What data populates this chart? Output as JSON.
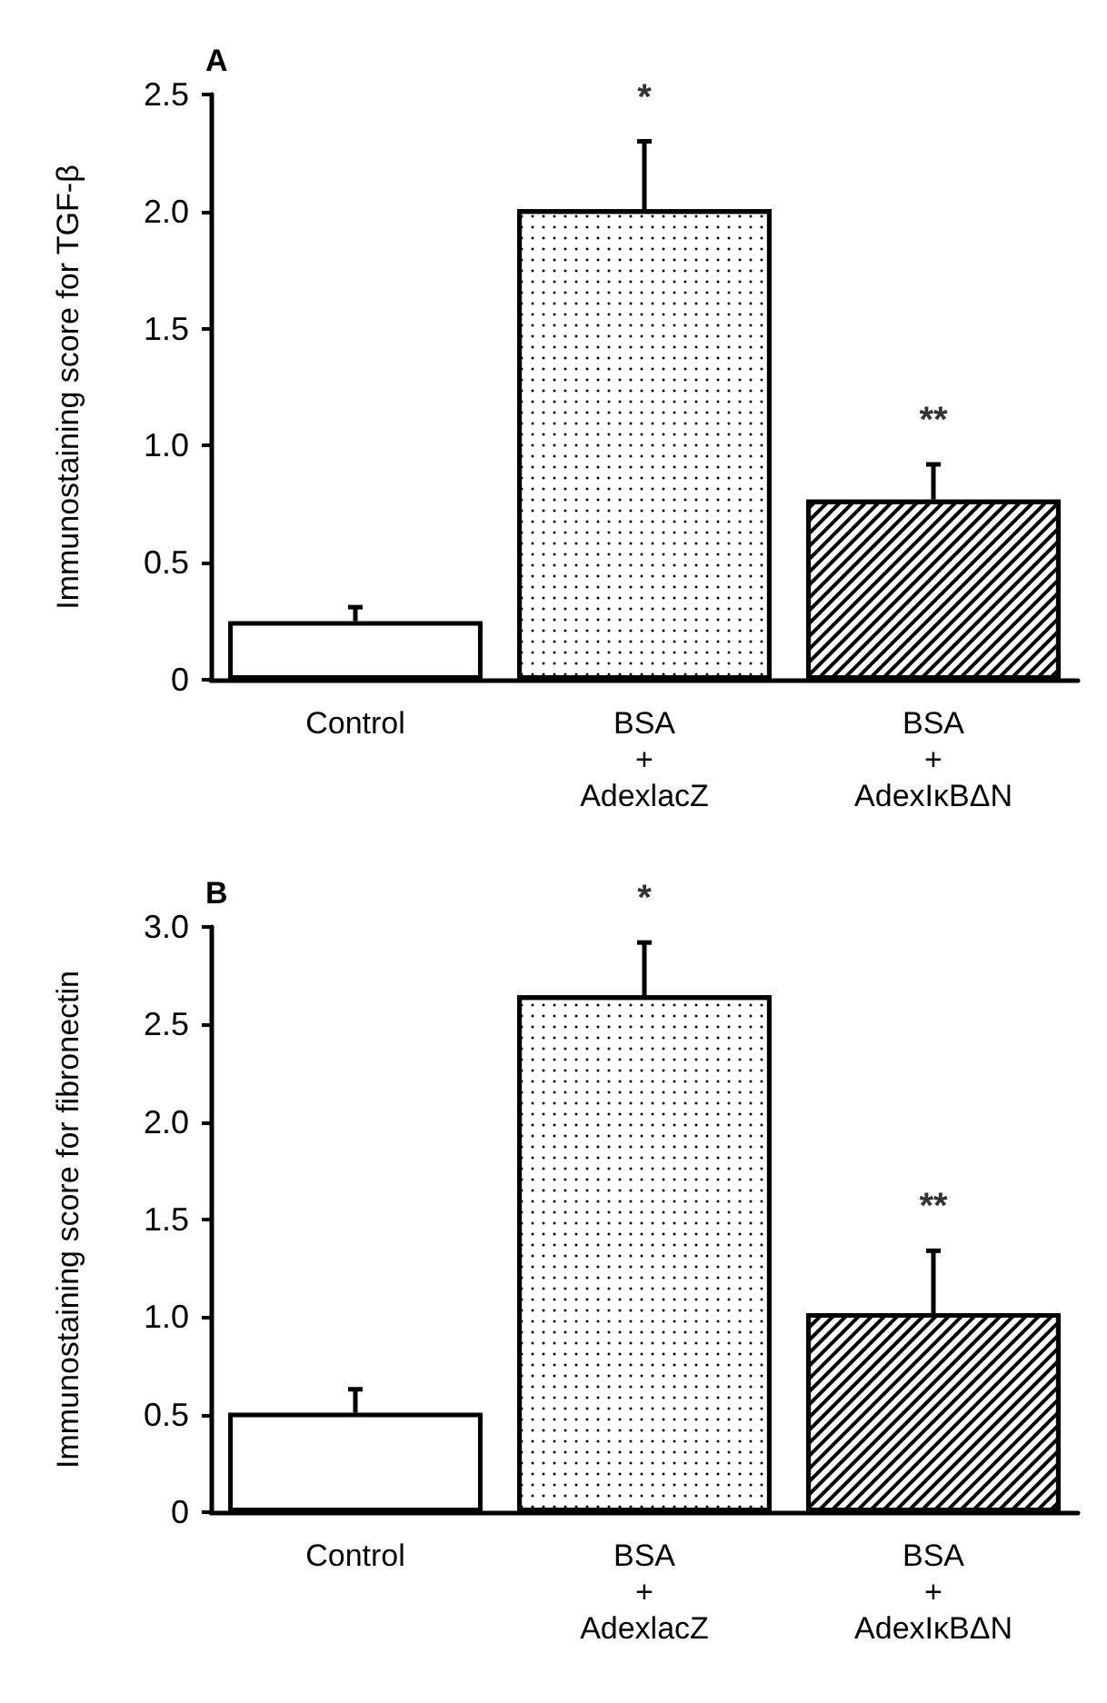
{
  "chart_data": [
    {
      "type": "bar",
      "title": "A",
      "ylabel": "Immunostaining score for TGF-β",
      "categories": [
        "Control",
        "BSA\n+\nAdexlacZ",
        "BSA\n+\nAdexIκBΔN"
      ],
      "values": [
        0.25,
        2.01,
        0.77
      ],
      "colors": [
        "#ffffff",
        "#ffffff",
        "#ffffff"
      ],
      "errors": [
        [
          0.25,
          0.31
        ],
        [
          2.01,
          2.3
        ],
        [
          0.77,
          0.92
        ]
      ],
      "ylim": [
        0,
        2.5
      ],
      "yticks": [
        {
          "value": 0,
          "label": "0"
        },
        {
          "value": 0.5,
          "label": "0.5"
        },
        {
          "value": 1,
          "label": "1.0"
        },
        {
          "value": 1.5,
          "label": "1.5"
        },
        {
          "value": 2,
          "label": "2.0"
        },
        {
          "value": 2.5,
          "label": "2.5"
        }
      ],
      "grid": false,
      "annotations": [
        {
          "text": "*",
          "x": "BSA\n+\nAdexlacZ",
          "y": 2.3
        },
        {
          "text": "**",
          "x": "BSA\n+\nAdexIκBΔN",
          "y": 0.92
        }
      ]
    },
    {
      "type": "bar",
      "title": "B",
      "ylabel": "Immunostaining score for fibronectin",
      "categories": [
        "Control",
        "BSA\n+\nAdexlacZ",
        "BSA\n+\nAdexIκBΔN"
      ],
      "values": [
        0.51,
        2.65,
        1.02
      ],
      "colors": [
        "#ffffff",
        "#ffffff",
        "#ffffff"
      ],
      "errors": [
        [
          0.51,
          0.63
        ],
        [
          2.65,
          2.92
        ],
        [
          1.02,
          1.34
        ]
      ],
      "ylim": [
        0,
        3.0
      ],
      "yticks": [
        {
          "value": 0,
          "label": "0"
        },
        {
          "value": 0.5,
          "label": "0.5"
        },
        {
          "value": 1,
          "label": "1.0"
        },
        {
          "value": 1.5,
          "label": "1.5"
        },
        {
          "value": 2,
          "label": "2.0"
        },
        {
          "value": 2.5,
          "label": "2.5"
        },
        {
          "value": 3,
          "label": "3.0"
        }
      ],
      "grid": false,
      "annotations": [
        {
          "text": "*",
          "x": "BSA\n+\nAdexlacZ",
          "y": 2.92
        },
        {
          "text": "**",
          "x": "BSA\n+\nAdexIκBΔN",
          "y": 1.34
        }
      ]
    }
  ]
}
